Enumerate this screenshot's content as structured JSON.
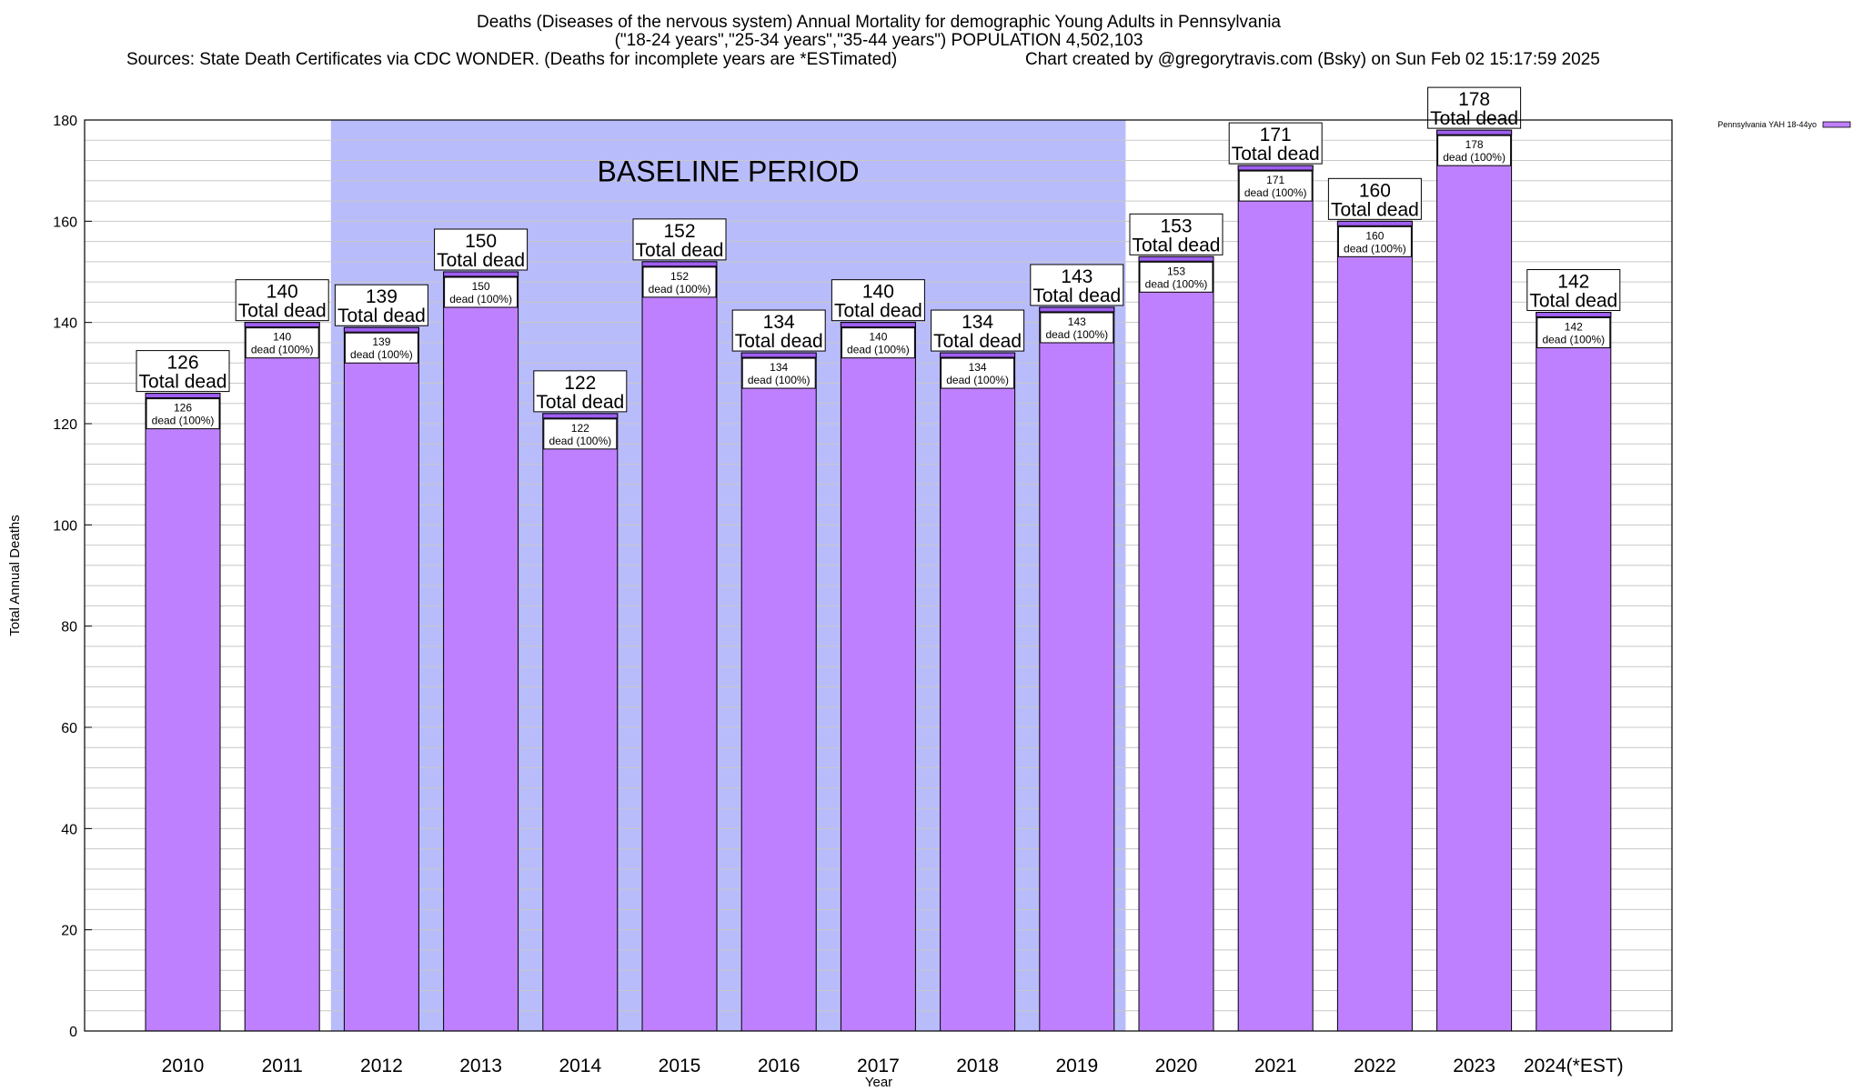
{
  "chart_data": {
    "type": "bar",
    "title_lines": [
      "Deaths (Diseases of the nervous system) Annual Mortality for demographic Young Adults in Pennsylvania",
      "(\"18-24 years\",\"25-34 years\",\"35-44 years\") POPULATION 4,502,103",
      "Sources: State Death Certificates via CDC WONDER. (Deaths for incomplete years are *ESTimated)",
      "Chart created by @gregorytravis.com (Bsky) on Sun Feb 02 15:17:59 2025"
    ],
    "xlabel": "Year",
    "ylabel": "Total Annual Deaths",
    "ylim": [
      0,
      180
    ],
    "y_major_step": 20,
    "y_minor_step": 4,
    "y_ticks": [
      "0",
      "20",
      "40",
      "60",
      "80",
      "100",
      "120",
      "140",
      "160",
      "180"
    ],
    "categories": [
      "2010",
      "2011",
      "2012",
      "2013",
      "2014",
      "2015",
      "2016",
      "2017",
      "2018",
      "2019",
      "2020",
      "2021",
      "2022",
      "2023",
      "2024(*EST)"
    ],
    "series": [
      {
        "name": "Pennsylvania YAH 18-44yo",
        "values": [
          126,
          140,
          139,
          150,
          122,
          152,
          134,
          140,
          134,
          143,
          153,
          171,
          160,
          178,
          142
        ]
      }
    ],
    "total_labels": [
      "126",
      "140",
      "139",
      "150",
      "122",
      "152",
      "134",
      "140",
      "134",
      "143",
      "153",
      "171",
      "160",
      "178",
      "142"
    ],
    "total_suffix": "Total dead",
    "inner_labels": [
      "126",
      "140",
      "139",
      "150",
      "122",
      "152",
      "134",
      "140",
      "134",
      "143",
      "153",
      "171",
      "160",
      "178",
      "142"
    ],
    "inner_suffix": "dead (100%)",
    "baseline": {
      "label": "BASELINE PERIOD",
      "start_category": "2012",
      "end_category": "2019"
    },
    "legend": {
      "position": "top-right",
      "entries": [
        "Pennsylvania YAH 18-44yo"
      ]
    },
    "colors": {
      "bar": "#bf80ff",
      "bar_cap": "#9e5ff0",
      "baseline_band": "#b9bcfb",
      "grid": "#c8c8c8",
      "frame": "#000000"
    }
  }
}
